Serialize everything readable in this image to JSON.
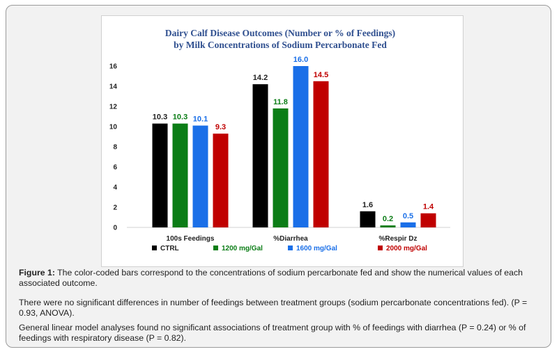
{
  "chart_data": {
    "type": "bar",
    "title_line1": "Dairy Calf Disease Outcomes (Number or % of Feedings)",
    "title_line2": "by Milk Concentrations of Sodium Percarbonate Fed",
    "categories": [
      "100s Feedings",
      "%Diarrhea",
      "%Respir Dz"
    ],
    "series": [
      {
        "name": "CTRL",
        "color": "#000000",
        "label_color": "#222222",
        "values": [
          10.3,
          14.2,
          1.6
        ]
      },
      {
        "name": "1200 mg/Gal",
        "color": "#0b7d16",
        "label_color": "#0b7d16",
        "values": [
          10.3,
          11.8,
          0.2
        ]
      },
      {
        "name": "1600 mg/Gal",
        "color": "#1a6fe8",
        "label_color": "#1a6fe8",
        "values": [
          10.1,
          16.0,
          0.5
        ]
      },
      {
        "name": "2000 mg/Gal",
        "color": "#c00000",
        "label_color": "#c00000",
        "values": [
          9.3,
          14.5,
          1.4
        ]
      }
    ],
    "ylim": [
      0,
      16
    ],
    "yticks": [
      "0",
      "2",
      "4",
      "6",
      "8",
      "10",
      "12",
      "14",
      "16"
    ],
    "xlabel": "",
    "ylabel": "",
    "grid": false,
    "legend": "bottom"
  },
  "caption": {
    "fig_label": "Figure 1:",
    "fig_text": " The color-coded bars correspond to the concentrations of sodium percarbonate fed and show the numerical values of each associated outcome.",
    "para2": "There were no significant differences in number of feedings between treatment groups (sodium percarbonate concentrations fed). (P = 0.93, ANOVA).",
    "para3": "General linear model analyses found no significant associations of treatment group with % of feedings with diarrhea (P = 0.24) or % of feedings with respiratory disease (P = 0.82)."
  }
}
